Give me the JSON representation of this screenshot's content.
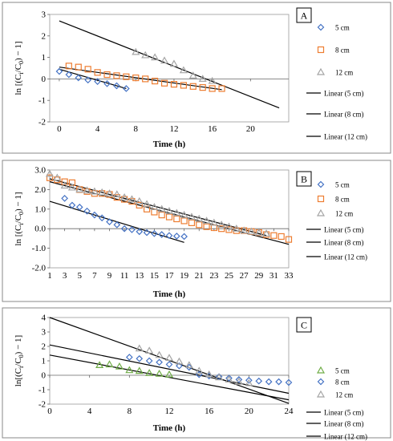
{
  "chart_data": [
    {
      "type": "scatter",
      "panel_label": "A",
      "xlabel": "Time (h)",
      "ylabel_main": "ln [(C",
      "ylabel_sub1": "i",
      "ylabel_mid": "/C",
      "ylabel_sub2": "0",
      "ylabel_end": ") − 1]",
      "xlim": [
        -1,
        24
      ],
      "ylim": [
        -2,
        3
      ],
      "xticks": [
        0,
        4,
        8,
        12,
        16,
        20
      ],
      "yticks": [
        -2,
        -1,
        0,
        1,
        2,
        3
      ],
      "legend": [
        "5 cm",
        "8 cm",
        "12 cm",
        "Linear (5 cm)",
        "Linear (8 cm)",
        "Linear (12 cm)"
      ],
      "series": [
        {
          "name": "5 cm",
          "marker": "diamond",
          "color": "#4472C4",
          "x": [
            0,
            1,
            2,
            3,
            4,
            5,
            6,
            7
          ],
          "y": [
            0.35,
            0.2,
            0.05,
            -0.05,
            -0.12,
            -0.22,
            -0.32,
            -0.45
          ]
        },
        {
          "name": "8 cm",
          "marker": "square",
          "color": "#ED7D31",
          "x": [
            1,
            2,
            3,
            4,
            5,
            6,
            7,
            8,
            9,
            10,
            11,
            12,
            13,
            14,
            15,
            16,
            17
          ],
          "y": [
            0.6,
            0.55,
            0.45,
            0.3,
            0.2,
            0.15,
            0.1,
            0.05,
            0.0,
            -0.1,
            -0.2,
            -0.25,
            -0.3,
            -0.35,
            -0.4,
            -0.45,
            -0.45
          ]
        },
        {
          "name": "12 cm",
          "marker": "triangle",
          "color": "#A5A5A5",
          "x": [
            8,
            9,
            10,
            11,
            12,
            13,
            14,
            15,
            16
          ],
          "y": [
            1.25,
            1.1,
            1.0,
            0.85,
            0.7,
            0.4,
            0.15,
            0.0,
            -0.1
          ]
        }
      ],
      "trendlines": [
        {
          "name": "Linear (5 cm)",
          "x": [
            0,
            7
          ],
          "y": [
            0.45,
            -0.45
          ]
        },
        {
          "name": "Linear (8 cm)",
          "x": [
            0,
            17
          ],
          "y": [
            0.55,
            -0.5
          ]
        },
        {
          "name": "Linear (12 cm)",
          "x": [
            0,
            23
          ],
          "y": [
            2.7,
            -1.35
          ]
        }
      ]
    },
    {
      "type": "scatter",
      "panel_label": "B",
      "xlabel": "Time (h)",
      "ylabel_main": "ln [(C",
      "ylabel_sub1": "i",
      "ylabel_mid": "/C",
      "ylabel_sub2": "0",
      "ylabel_end": ") − 1]",
      "xlim": [
        1,
        33
      ],
      "ylim": [
        -2,
        3
      ],
      "xticks": [
        1,
        3,
        5,
        7,
        9,
        11,
        13,
        15,
        17,
        19,
        21,
        23,
        25,
        27,
        29,
        31,
        33
      ],
      "yticks": [
        -2.0,
        -1.0,
        0.0,
        1.0,
        2.0,
        3.0
      ],
      "ytick_labels": [
        "-2.0",
        "-1.0",
        "0.0",
        "1.0",
        "2.0",
        "3.0"
      ],
      "legend": [
        "5 cm",
        "8 cm",
        "12 cm",
        "Linear (5 cm)",
        "Linear (8 cm)",
        "Linear (12 cm)"
      ],
      "series": [
        {
          "name": "5 cm",
          "marker": "diamond",
          "color": "#4472C4",
          "x": [
            3,
            4,
            5,
            6,
            7,
            8,
            9,
            10,
            11,
            12,
            13,
            14,
            15,
            16,
            17,
            18,
            19
          ],
          "y": [
            1.55,
            1.2,
            1.1,
            0.9,
            0.7,
            0.55,
            0.35,
            0.2,
            0.0,
            -0.05,
            -0.15,
            -0.2,
            -0.25,
            -0.3,
            -0.35,
            -0.38,
            -0.4
          ]
        },
        {
          "name": "8 cm",
          "marker": "square",
          "color": "#ED7D31",
          "x": [
            1,
            2,
            3,
            4,
            5,
            6,
            7,
            8,
            9,
            10,
            11,
            12,
            13,
            14,
            15,
            16,
            17,
            18,
            19,
            20,
            21,
            22,
            23,
            24,
            25,
            26,
            27,
            28,
            29,
            30,
            31,
            32,
            33
          ],
          "y": [
            2.6,
            2.5,
            2.4,
            2.35,
            2.0,
            1.9,
            1.8,
            1.8,
            1.75,
            1.6,
            1.5,
            1.4,
            1.2,
            1.0,
            0.85,
            0.7,
            0.6,
            0.5,
            0.4,
            0.3,
            0.2,
            0.1,
            0.05,
            0.0,
            -0.05,
            -0.1,
            -0.1,
            -0.15,
            -0.2,
            -0.3,
            -0.35,
            -0.4,
            -0.55
          ]
        },
        {
          "name": "12 cm",
          "marker": "triangle",
          "color": "#A5A5A5",
          "x": [
            1,
            2,
            3,
            4,
            5,
            6,
            7,
            8,
            9,
            10,
            11,
            12,
            13,
            14,
            15,
            16,
            17,
            18,
            19,
            20,
            21,
            22,
            23,
            24,
            25,
            26,
            27,
            28,
            29,
            30
          ],
          "y": [
            2.8,
            2.6,
            2.2,
            2.1,
            2.0,
            1.95,
            1.9,
            1.85,
            1.8,
            1.75,
            1.6,
            1.5,
            1.4,
            1.25,
            1.1,
            1.0,
            0.9,
            0.8,
            0.7,
            0.6,
            0.5,
            0.4,
            0.3,
            0.2,
            0.1,
            0.0,
            -0.1,
            -0.15,
            -0.2,
            -0.25
          ]
        }
      ],
      "trendlines": [
        {
          "name": "Linear (5 cm)",
          "x": [
            1,
            19
          ],
          "y": [
            1.4,
            -0.7
          ]
        },
        {
          "name": "Linear (8 cm)",
          "x": [
            1,
            33
          ],
          "y": [
            2.4,
            -0.8
          ]
        },
        {
          "name": "Linear (12 cm)",
          "x": [
            1,
            30
          ],
          "y": [
            2.55,
            -0.35
          ]
        }
      ]
    },
    {
      "type": "scatter",
      "panel_label": "C",
      "xlabel": "Time (h)",
      "ylabel_main": "ln[(C",
      "ylabel_sub1": "i",
      "ylabel_mid": "/C",
      "ylabel_sub2": "0",
      "ylabel_end": ") − 1]",
      "xlim": [
        0,
        24
      ],
      "ylim": [
        -2,
        4
      ],
      "xticks": [
        0,
        4,
        8,
        12,
        16,
        20,
        24
      ],
      "yticks": [
        -2,
        -1,
        0,
        1,
        2,
        3,
        4
      ],
      "legend": [
        "5 cm",
        "8 cm",
        "12 cm",
        "Linear (5 cm)",
        "Linear (8 cm)",
        "Linear (12 cm)"
      ],
      "series": [
        {
          "name": "5 cm",
          "marker": "triangle",
          "color": "#70AD47",
          "x": [
            5,
            6,
            7,
            8,
            9,
            10,
            11,
            12
          ],
          "y": [
            0.7,
            0.75,
            0.6,
            0.35,
            0.3,
            0.15,
            0.1,
            0.05
          ]
        },
        {
          "name": "8 cm",
          "marker": "diamond",
          "color": "#4472C4",
          "x": [
            8,
            9,
            10,
            11,
            12,
            13,
            14,
            15,
            16,
            17,
            18,
            19,
            20,
            21,
            22,
            23,
            24
          ],
          "y": [
            1.25,
            1.15,
            1.0,
            0.9,
            0.75,
            0.65,
            0.55,
            0.05,
            -0.05,
            -0.1,
            -0.2,
            -0.3,
            -0.35,
            -0.4,
            -0.45,
            -0.45,
            -0.5
          ]
        },
        {
          "name": "12 cm",
          "marker": "triangle",
          "color": "#A5A5A5",
          "x": [
            9,
            10,
            11,
            12,
            13,
            14,
            15,
            16,
            17,
            18,
            19,
            20
          ],
          "y": [
            1.85,
            1.7,
            1.4,
            1.2,
            0.95,
            0.7,
            0.3,
            0.05,
            -0.15,
            -0.3,
            -0.45,
            -0.55
          ]
        }
      ],
      "trendlines": [
        {
          "name": "Linear (5 cm)",
          "x": [
            0,
            24
          ],
          "y": [
            1.4,
            -1.7
          ]
        },
        {
          "name": "Linear (8 cm)",
          "x": [
            0,
            24
          ],
          "y": [
            2.1,
            -1.25
          ]
        },
        {
          "name": "Linear (12 cm)",
          "x": [
            0,
            24
          ],
          "y": [
            4.0,
            -1.95
          ]
        }
      ]
    }
  ]
}
